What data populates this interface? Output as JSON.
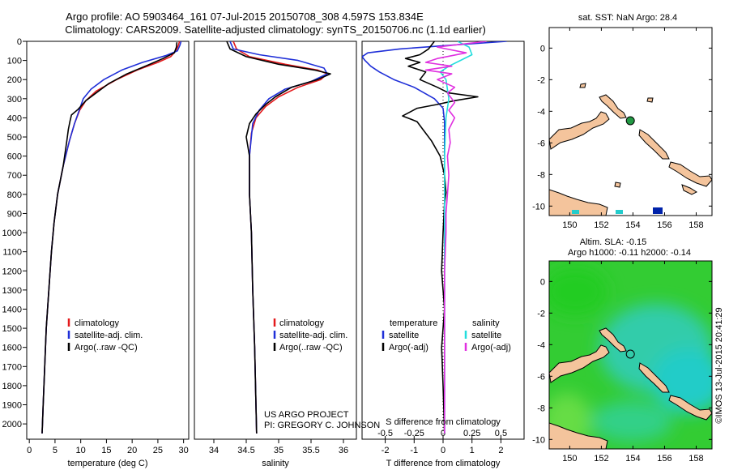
{
  "header": {
    "title_line1": "Argo profile: AO 5903464_161 07-Jul-2015 20150708_308 4.597S 153.834E",
    "title_line2": "Climatology: CARS2009. Satellite-adjusted climatology: synTS_20150706.nc (1.1d earlier)"
  },
  "colors": {
    "climatology": "#e41a1c",
    "satellite": "#1f2fd8",
    "argo": "#000000",
    "satellite_salinity": "#22dddd",
    "argo_salinity_adj": "#e030e0",
    "land": "#f4c49c",
    "sla_low": "#22ccbb",
    "sla_high": "#22cc22",
    "marker_sst_a": "#22cccc",
    "marker_sst_b": "#0022aa"
  },
  "chart_data": [
    {
      "id": "temperature",
      "type": "line",
      "xlabel": "temperature (deg C)",
      "ylabel": "",
      "xlim": [
        -0.5,
        31
      ],
      "ylim": [
        2080,
        0
      ],
      "xticks": [
        0,
        5,
        10,
        15,
        20,
        25,
        30
      ],
      "yticks": [
        0,
        100,
        200,
        300,
        400,
        500,
        600,
        700,
        800,
        900,
        1000,
        1100,
        1200,
        1300,
        1400,
        1500,
        1600,
        1700,
        1800,
        1900,
        2000
      ],
      "legend": [
        "climatology",
        "satellite-adj. clim.",
        "Argo(..raw -QC)"
      ],
      "series": [
        {
          "name": "climatology",
          "color_key": "climatology",
          "points": [
            [
              29.2,
              0
            ],
            [
              29,
              20
            ],
            [
              28.5,
              50
            ],
            [
              27.5,
              80
            ],
            [
              25,
              110
            ],
            [
              21,
              150
            ],
            [
              17,
              200
            ],
            [
              13,
              260
            ],
            [
              11,
              310
            ],
            [
              9.8,
              360
            ],
            [
              8.8,
              430
            ],
            [
              7.8,
              520
            ],
            [
              6.6,
              650
            ],
            [
              5.5,
              800
            ],
            [
              4.8,
              950
            ],
            [
              4.3,
              1100
            ],
            [
              3.8,
              1300
            ],
            [
              3.3,
              1500
            ],
            [
              3.0,
              1700
            ],
            [
              2.7,
              1900
            ],
            [
              2.5,
              2050
            ]
          ]
        },
        {
          "name": "satellite-adj. clim.",
          "color_key": "satellite",
          "points": [
            [
              29.5,
              0
            ],
            [
              29.3,
              20
            ],
            [
              28.8,
              50
            ],
            [
              26.5,
              75
            ],
            [
              22,
              110
            ],
            [
              18,
              150
            ],
            [
              14.5,
              200
            ],
            [
              12,
              250
            ],
            [
              10.5,
              300
            ],
            [
              9.7,
              360
            ],
            [
              8.8,
              430
            ],
            [
              7.8,
              520
            ],
            [
              6.6,
              650
            ],
            [
              5.5,
              800
            ],
            [
              4.8,
              950
            ],
            [
              4.3,
              1100
            ],
            [
              3.8,
              1300
            ],
            [
              3.3,
              1500
            ],
            [
              3.0,
              1700
            ],
            [
              2.7,
              1900
            ],
            [
              2.5,
              2050
            ]
          ]
        },
        {
          "name": "Argo(..raw -QC)",
          "color_key": "argo",
          "points": [
            [
              28.7,
              5
            ],
            [
              28.6,
              30
            ],
            [
              28.2,
              60
            ],
            [
              26,
              90
            ],
            [
              23,
              125
            ],
            [
              19,
              170
            ],
            [
              15.5,
              220
            ],
            [
              13,
              270
            ],
            [
              11,
              310
            ],
            [
              9.5,
              355
            ],
            [
              8.2,
              385
            ],
            [
              7.9,
              420
            ],
            [
              7.6,
              460
            ],
            [
              7.3,
              520
            ],
            [
              6.6,
              650
            ],
            [
              5.5,
              800
            ],
            [
              4.8,
              950
            ],
            [
              4.3,
              1100
            ],
            [
              3.8,
              1300
            ],
            [
              3.3,
              1500
            ],
            [
              3.0,
              1700
            ],
            [
              2.7,
              1900
            ],
            [
              2.5,
              2050
            ]
          ]
        }
      ]
    },
    {
      "id": "salinity",
      "type": "line",
      "xlabel": "salinity",
      "ylabel": "",
      "xlim": [
        33.7,
        36.2
      ],
      "ylim": [
        2080,
        0
      ],
      "xticks": [
        34,
        34.5,
        35,
        35.5,
        36
      ],
      "legend": [
        "climatology",
        "satellite-adj. clim.",
        "Argo(..raw -QC)"
      ],
      "annotation_lines": [
        "US ARGO PROJECT",
        "PI: GREGORY C. JOHNSON"
      ],
      "series": [
        {
          "name": "climatology",
          "color_key": "climatology",
          "points": [
            [
              34.3,
              0
            ],
            [
              34.35,
              40
            ],
            [
              34.55,
              80
            ],
            [
              35.1,
              120
            ],
            [
              35.6,
              150
            ],
            [
              35.75,
              170
            ],
            [
              35.65,
              200
            ],
            [
              35.3,
              240
            ],
            [
              35.0,
              290
            ],
            [
              34.8,
              340
            ],
            [
              34.65,
              400
            ],
            [
              34.58,
              480
            ],
            [
              34.55,
              600
            ],
            [
              34.55,
              800
            ],
            [
              34.58,
              1000
            ],
            [
              34.6,
              1300
            ],
            [
              34.63,
              1600
            ],
            [
              34.65,
              1900
            ],
            [
              34.66,
              2050
            ]
          ]
        },
        {
          "name": "satellite-adj. clim.",
          "color_key": "satellite",
          "points": [
            [
              34.25,
              0
            ],
            [
              34.3,
              40
            ],
            [
              34.7,
              70
            ],
            [
              35.3,
              100
            ],
            [
              35.7,
              140
            ],
            [
              35.75,
              170
            ],
            [
              35.5,
              210
            ],
            [
              35.1,
              250
            ],
            [
              34.85,
              300
            ],
            [
              34.7,
              360
            ],
            [
              34.6,
              430
            ],
            [
              34.55,
              600
            ],
            [
              34.55,
              800
            ],
            [
              34.58,
              1000
            ],
            [
              34.6,
              1300
            ],
            [
              34.63,
              1600
            ],
            [
              34.65,
              1900
            ],
            [
              34.66,
              2050
            ]
          ]
        },
        {
          "name": "Argo(..raw -QC)",
          "color_key": "argo",
          "points": [
            [
              34.2,
              0
            ],
            [
              34.25,
              40
            ],
            [
              34.5,
              80
            ],
            [
              35.0,
              120
            ],
            [
              35.55,
              150
            ],
            [
              35.8,
              170
            ],
            [
              35.6,
              200
            ],
            [
              35.2,
              240
            ],
            [
              34.95,
              290
            ],
            [
              34.8,
              330
            ],
            [
              34.65,
              380
            ],
            [
              34.55,
              430
            ],
            [
              34.5,
              500
            ],
            [
              34.55,
              600
            ],
            [
              34.55,
              800
            ],
            [
              34.58,
              1000
            ],
            [
              34.6,
              1300
            ],
            [
              34.63,
              1600
            ],
            [
              34.65,
              1900
            ],
            [
              34.66,
              2050
            ]
          ]
        }
      ]
    },
    {
      "id": "difference",
      "type": "line",
      "xlabel": "T difference from climatology",
      "top_label": "S difference from climatology",
      "xlim": [
        -2.8,
        2.8
      ],
      "ylim": [
        2080,
        0
      ],
      "xticks": [
        -2,
        -1,
        0,
        1,
        2
      ],
      "s_ticks": [
        -0.5,
        -0.25,
        0,
        0.25,
        0.5
      ],
      "s_tick_labels": [
        "-0.5",
        "-0.25",
        "0",
        "0.25",
        "0.5"
      ],
      "s_to_t_factor": 4,
      "legend_temperature": {
        "heading": "temperature",
        "items": [
          "satellite",
          "Argo(-adj)"
        ]
      },
      "legend_salinity": {
        "heading": "salinity",
        "items": [
          "satellite",
          "Argo(-adj)"
        ]
      },
      "series": [
        {
          "name": "temperature satellite",
          "color_key": "satellite",
          "points": [
            [
              2.2,
              0
            ],
            [
              0.3,
              20
            ],
            [
              -1.5,
              40
            ],
            [
              -2.6,
              60
            ],
            [
              -2.8,
              80
            ],
            [
              -2.7,
              100
            ],
            [
              -2.5,
              130
            ],
            [
              -2.2,
              160
            ],
            [
              -1.7,
              200
            ],
            [
              -1,
              240
            ],
            [
              -0.3,
              300
            ],
            [
              0,
              350
            ],
            [
              0.05,
              420
            ],
            [
              0.05,
              600
            ],
            [
              0.05,
              900
            ],
            [
              0.05,
              1200
            ],
            [
              0.05,
              1500
            ],
            [
              0.05,
              1800
            ],
            [
              0.05,
              2050
            ]
          ]
        },
        {
          "name": "temperature Argo(-adj)",
          "color_key": "argo",
          "points": [
            [
              -0.3,
              0
            ],
            [
              -0.5,
              40
            ],
            [
              -0.8,
              70
            ],
            [
              -1.3,
              90
            ],
            [
              -0.8,
              110
            ],
            [
              -1.2,
              130
            ],
            [
              -0.6,
              160
            ],
            [
              -0.8,
              200
            ],
            [
              -0.2,
              240
            ],
            [
              0.2,
              270
            ],
            [
              1.2,
              290
            ],
            [
              0.4,
              310
            ],
            [
              -0.2,
              330
            ],
            [
              -0.9,
              350
            ],
            [
              -1.4,
              390
            ],
            [
              -0.9,
              420
            ],
            [
              -0.7,
              460
            ],
            [
              -0.4,
              520
            ],
            [
              -0.1,
              600
            ],
            [
              0.05,
              700
            ],
            [
              0.1,
              790
            ],
            [
              0.05,
              850
            ],
            [
              0,
              1000
            ],
            [
              -0.05,
              1200
            ],
            [
              0.05,
              1400
            ],
            [
              -0.05,
              1600
            ],
            [
              0,
              1800
            ],
            [
              0.05,
              2050
            ]
          ]
        },
        {
          "name": "salinity satellite",
          "color_key": "satellite_salinity",
          "points": [
            [
              0.5,
              0
            ],
            [
              0.9,
              30
            ],
            [
              1.0,
              70
            ],
            [
              0.6,
              100
            ],
            [
              0.2,
              130
            ],
            [
              -0.1,
              160
            ],
            [
              0.1,
              200
            ],
            [
              0.2,
              300
            ],
            [
              0.1,
              400
            ],
            [
              0.05,
              600
            ],
            [
              0.05,
              900
            ],
            [
              0.05,
              1200
            ],
            [
              0.05,
              1500
            ],
            [
              0.05,
              1800
            ],
            [
              0.05,
              2050
            ]
          ]
        },
        {
          "name": "salinity Argo(-adj)",
          "color_key": "argo_salinity_adj",
          "points": [
            [
              1.5,
              0
            ],
            [
              -0.2,
              30
            ],
            [
              0.8,
              60
            ],
            [
              -0.2,
              90
            ],
            [
              -0.6,
              110
            ],
            [
              0.3,
              130
            ],
            [
              -0.6,
              150
            ],
            [
              0.3,
              170
            ],
            [
              -0.2,
              200
            ],
            [
              0.4,
              240
            ],
            [
              0.15,
              270
            ],
            [
              0.4,
              320
            ],
            [
              0.2,
              360
            ],
            [
              0.4,
              400
            ],
            [
              0.2,
              460
            ],
            [
              0.25,
              530
            ],
            [
              0.15,
              600
            ],
            [
              0.2,
              700
            ],
            [
              0.15,
              800
            ],
            [
              0.1,
              900
            ],
            [
              0.1,
              1000
            ],
            [
              0.05,
              1200
            ],
            [
              0.05,
              1400
            ],
            [
              0.05,
              1600
            ],
            [
              0.05,
              1800
            ],
            [
              0.05,
              2050
            ]
          ]
        }
      ]
    },
    {
      "id": "sst_map",
      "type": "map",
      "title": "sat. SST: NaN Argo: 28.4",
      "xlim": [
        148.7,
        159
      ],
      "ylim": [
        -10.6,
        1.3
      ],
      "xticks": [
        150,
        152,
        154,
        156,
        158
      ],
      "yticks": [
        0,
        -2,
        -4,
        -6,
        -8,
        -10
      ],
      "argo_position": [
        153.834,
        -4.597
      ]
    },
    {
      "id": "sla_map",
      "type": "heatmap",
      "title_line1": "Altim. SLA: -0.15",
      "title_line2": "Argo h1000: -0.11 h2000: -0.14",
      "xlim": [
        148.7,
        159
      ],
      "ylim": [
        -10.6,
        1.3
      ],
      "xticks": [
        150,
        152,
        154,
        156,
        158
      ],
      "yticks": [
        0,
        -2,
        -4,
        -6,
        -8,
        -10
      ],
      "argo_position": [
        153.834,
        -4.597
      ]
    }
  ],
  "credit": "©IMOS 13-Jul-2015 20:41:29"
}
